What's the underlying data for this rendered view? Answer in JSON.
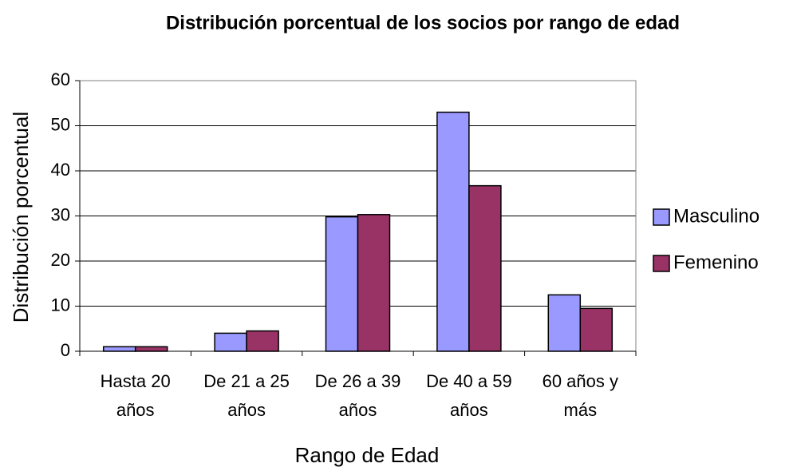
{
  "chart_data": {
    "type": "bar",
    "title": "Distribución porcentual de los socios por rango de edad",
    "x_label": "Rango de Edad",
    "y_label": "Distribución porcentual",
    "categories": [
      "Hasta 20 años",
      "De 21 a 25 años",
      "De 26 a 39 años",
      "De 40 a 59 años",
      "60 años y más"
    ],
    "series": [
      {
        "name": "Masculino",
        "color": "#9999ff",
        "values": [
          1,
          4,
          29.8,
          53,
          12.5
        ]
      },
      {
        "name": "Femenino",
        "color": "#993366",
        "values": [
          1,
          4.5,
          30.3,
          36.7,
          9.5
        ]
      }
    ],
    "ylim": [
      0,
      60
    ],
    "yticks": [
      0,
      10,
      20,
      30,
      40,
      50,
      60
    ],
    "grid": true,
    "legend": "right"
  }
}
